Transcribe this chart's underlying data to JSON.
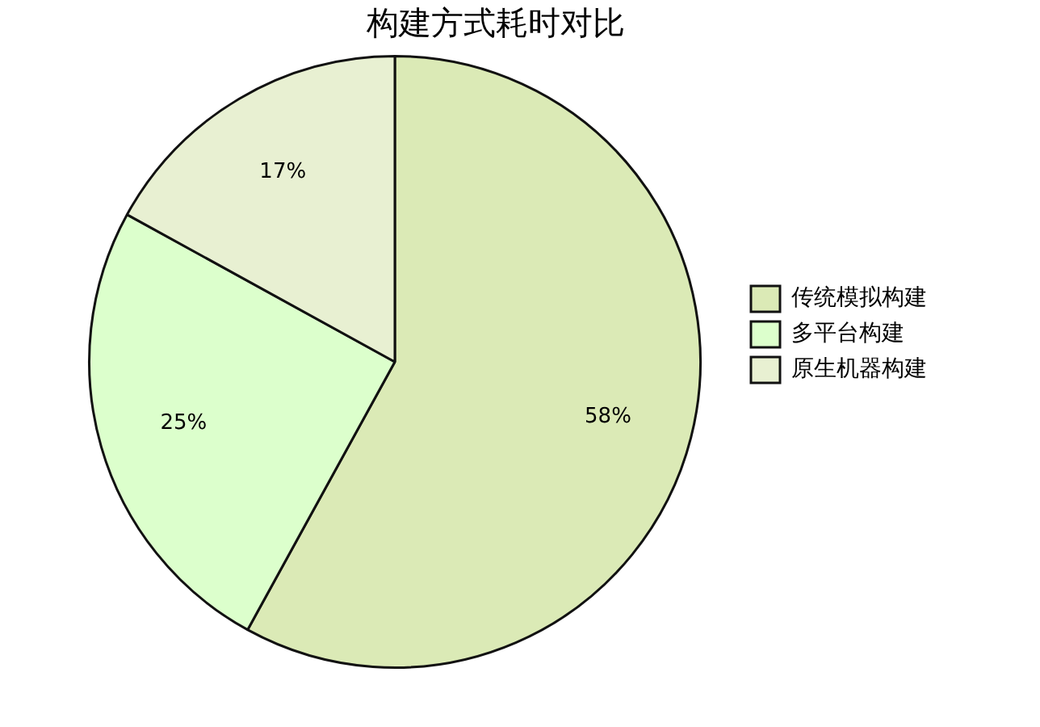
{
  "chart_data": {
    "type": "pie",
    "title": "构建方式耗时对比",
    "categories": [
      "传统模拟构建",
      "多平台构建",
      "原生机器构建"
    ],
    "values": [
      58,
      25,
      17
    ],
    "colors": [
      "#dbeab6",
      "#dcffcc",
      "#e8f0d2"
    ],
    "value_labels": [
      "58%",
      "25%",
      "17%"
    ],
    "legend": "right"
  }
}
